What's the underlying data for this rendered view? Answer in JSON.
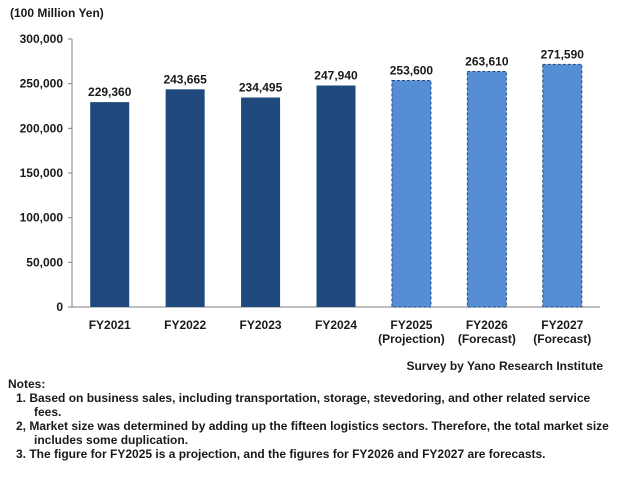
{
  "chart_data": {
    "type": "bar",
    "unit_label": "(100 Million Yen)",
    "categories": [
      [
        "FY2021"
      ],
      [
        "FY2022"
      ],
      [
        "FY2023"
      ],
      [
        "FY2024"
      ],
      [
        "FY2025",
        "(Projection)"
      ],
      [
        "FY2026",
        "(Forecast)"
      ],
      [
        "FY2027",
        "(Forecast)"
      ]
    ],
    "values": [
      229360,
      243665,
      234495,
      247940,
      253600,
      263610,
      271590
    ],
    "value_labels": [
      "229,360",
      "243,665",
      "234,495",
      "247,940",
      "253,600",
      "263,610",
      "271,590"
    ],
    "y_ticks": [
      0,
      50000,
      100000,
      150000,
      200000,
      250000,
      300000
    ],
    "y_tick_labels": [
      "0",
      "50,000",
      "100,000",
      "150,000",
      "200,000",
      "250,000",
      "300,000"
    ],
    "ylim": [
      0,
      300000
    ],
    "grid": false,
    "legend": "none",
    "colors": {
      "actual": "#1f497d",
      "estimate": "#558ed5",
      "estimate_border": "#1f497d"
    },
    "estimate_start_index": 4
  },
  "source": "Survey by Yano Research Institute",
  "notes": {
    "title": "Notes:",
    "items": [
      "1. Based on business sales, including transportation, storage, stevedoring, and other related service fees.",
      "2, Market size was determined by adding up the fifteen logistics sectors. Therefore, the total market size includes some duplication.",
      "3. The figure for FY2025 is a projection, and the figures for FY2026 and FY2027 are forecasts."
    ]
  }
}
